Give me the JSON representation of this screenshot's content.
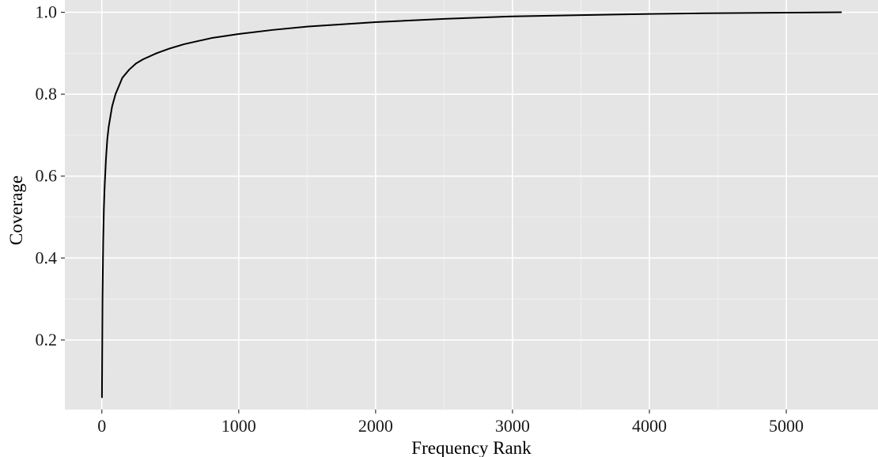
{
  "colors": {
    "panel_background": "#e5e5e5",
    "grid_major": "#ffffff",
    "grid_minor": "#f0f0f0",
    "line": "#000000",
    "tick": "#333333"
  },
  "chart_data": {
    "type": "line",
    "title": "",
    "xlabel": "Frequency Rank",
    "ylabel": "Coverage",
    "xlim": [
      -270,
      5670
    ],
    "ylim": [
      0.03,
      1.03
    ],
    "x_ticks": [
      0,
      1000,
      2000,
      3000,
      4000,
      5000
    ],
    "x_tick_labels": [
      "0",
      "1000",
      "2000",
      "3000",
      "4000",
      "5000"
    ],
    "y_ticks": [
      0.2,
      0.4,
      0.6,
      0.8,
      1.0
    ],
    "y_tick_labels": [
      "0.2",
      "0.4",
      "0.6",
      "0.8",
      "1.0"
    ],
    "grid": true,
    "legend": "none",
    "series": [
      {
        "x": [
          1,
          5,
          10,
          15,
          20,
          30,
          40,
          50,
          75,
          100,
          150,
          200,
          250,
          300,
          400,
          500,
          600,
          800,
          1000,
          1250,
          1500,
          2000,
          2500,
          3000,
          3500,
          4000,
          4500,
          5000,
          5400
        ],
        "y": [
          0.06,
          0.3,
          0.44,
          0.52,
          0.57,
          0.64,
          0.69,
          0.72,
          0.77,
          0.8,
          0.84,
          0.86,
          0.875,
          0.885,
          0.9,
          0.912,
          0.922,
          0.937,
          0.947,
          0.957,
          0.965,
          0.976,
          0.984,
          0.99,
          0.993,
          0.996,
          0.998,
          0.999,
          1.0
        ]
      }
    ]
  }
}
